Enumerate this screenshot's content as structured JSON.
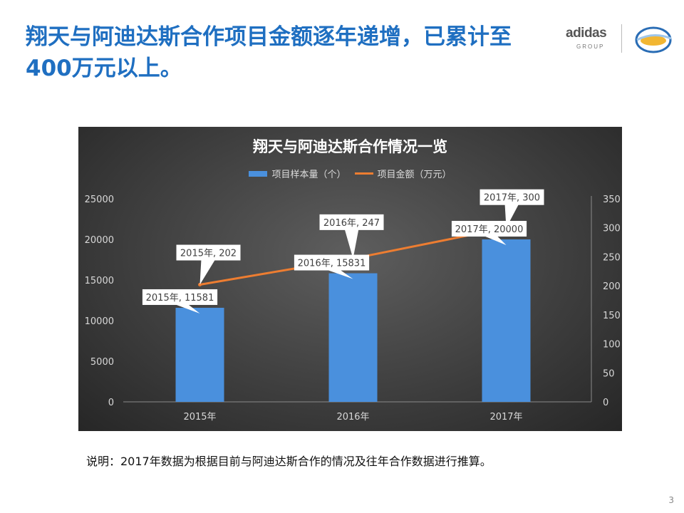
{
  "slide": {
    "title": "翔天与阿迪达斯合作项目金额逐年递增，已累计至400万元以上。",
    "note": "说明：2017年数据为根据目前与阿迪达斯合作的情况及往年合作数据进行推算。",
    "page_number": "3"
  },
  "logos": {
    "brand": "adidas",
    "brand_sub": "GROUP"
  },
  "chart_data": {
    "type": "bar",
    "title": "翔天与阿迪达斯合作情况一览",
    "categories": [
      "2015年",
      "2016年",
      "2017年"
    ],
    "series": [
      {
        "name": "项目样本量（个）",
        "type": "bar",
        "axis": "left",
        "values": [
          11581,
          15831,
          20000
        ],
        "color": "#4a90dd",
        "labels": [
          "2015年, 11581",
          "2016年, 15831",
          "2017年, 20000"
        ]
      },
      {
        "name": "项目金额（万元）",
        "type": "line",
        "axis": "right",
        "values": [
          202,
          247,
          300
        ],
        "color": "#ed7d31",
        "labels": [
          "2015年, 202",
          "2016年, 247",
          "2017年, 300"
        ]
      }
    ],
    "y_left": {
      "min": 0,
      "max": 25000,
      "ticks": [
        0,
        5000,
        10000,
        15000,
        20000,
        25000
      ]
    },
    "y_right": {
      "min": 0,
      "max": 350,
      "ticks": [
        0,
        50,
        100,
        150,
        200,
        250,
        300,
        350
      ]
    },
    "grid": false,
    "legend_position": "top",
    "background": "#3a3a3a"
  }
}
